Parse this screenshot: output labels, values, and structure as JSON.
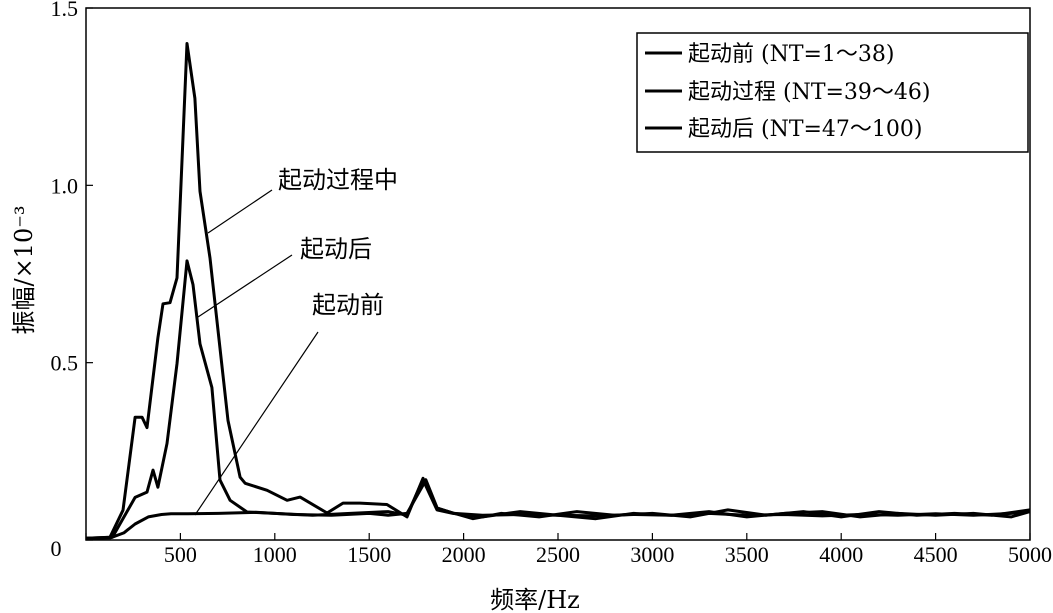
{
  "chart_data": {
    "type": "line",
    "title": "",
    "xlabel": "频率/Hz",
    "ylabel": "振幅/×10⁻³",
    "xlim": [
      0,
      5000
    ],
    "ylim": [
      0,
      1.5
    ],
    "grid": false,
    "x_ticks": [
      "0",
      "500",
      "1000",
      "1500",
      "2000",
      "2500",
      "3000",
      "3500",
      "4000",
      "4500",
      "5000"
    ],
    "y_ticks": [
      "0",
      "0.5",
      "1.0",
      "1.5"
    ],
    "legend_position": "top-right",
    "series": [
      {
        "name": "起动前  (NT=1～38)",
        "x": [
          0,
          130,
          200,
          260,
          330,
          400,
          450,
          540,
          700,
          900,
          1100,
          1300,
          1500,
          1600,
          1700,
          1780,
          1800,
          1860,
          1950,
          2100,
          2300,
          2500,
          2700,
          2900,
          3100,
          3300,
          3500,
          3700,
          3900,
          4100,
          4300,
          4500,
          4700,
          4900,
          5000
        ],
        "y": [
          0.005,
          0.006,
          0.02,
          0.045,
          0.065,
          0.072,
          0.074,
          0.074,
          0.075,
          0.078,
          0.072,
          0.07,
          0.075,
          0.07,
          0.075,
          0.15,
          0.17,
          0.09,
          0.075,
          0.07,
          0.072,
          0.07,
          0.068,
          0.072,
          0.07,
          0.075,
          0.07,
          0.072,
          0.068,
          0.072,
          0.07,
          0.074,
          0.07,
          0.075,
          0.08
        ]
      },
      {
        "name": "起动过程 (NT=39～46)",
        "x": [
          0,
          127,
          196,
          260,
          297,
          323,
          381,
          408,
          445,
          482,
          535,
          577,
          604,
          657,
          752,
          816,
          843,
          959,
          1065,
          1134,
          1277,
          1361,
          1451,
          1594,
          1700,
          1785,
          1859,
          1944,
          2050,
          2200,
          2400,
          2600,
          2800,
          3000,
          3200,
          3400,
          3600,
          3800,
          4000,
          4200,
          4400,
          4600,
          4800,
          5000
        ],
        "y": [
          0.005,
          0.008,
          0.084,
          0.346,
          0.346,
          0.317,
          0.57,
          0.666,
          0.669,
          0.739,
          1.4,
          1.245,
          0.983,
          0.795,
          0.337,
          0.177,
          0.16,
          0.14,
          0.112,
          0.121,
          0.076,
          0.104,
          0.104,
          0.1,
          0.065,
          0.174,
          0.09,
          0.076,
          0.06,
          0.075,
          0.065,
          0.08,
          0.07,
          0.075,
          0.065,
          0.085,
          0.07,
          0.08,
          0.065,
          0.08,
          0.07,
          0.075,
          0.07,
          0.085
        ]
      },
      {
        "name": "起动后  (NT=47～100)",
        "x": [
          0,
          140,
          260,
          323,
          355,
          381,
          429,
          482,
          535,
          567,
          604,
          667,
          710,
          763,
          853,
          1000,
          1200,
          1400,
          1600,
          1700,
          1785,
          1859,
          1944,
          2100,
          2300,
          2500,
          2700,
          2900,
          3100,
          3300,
          3500,
          3700,
          3900,
          4100,
          4300,
          4500,
          4700,
          4900,
          5000
        ],
        "y": [
          0.005,
          0.008,
          0.12,
          0.135,
          0.197,
          0.149,
          0.272,
          0.497,
          0.787,
          0.72,
          0.553,
          0.43,
          0.169,
          0.112,
          0.079,
          0.075,
          0.07,
          0.075,
          0.08,
          0.07,
          0.17,
          0.085,
          0.075,
          0.065,
          0.08,
          0.07,
          0.06,
          0.075,
          0.07,
          0.08,
          0.065,
          0.075,
          0.08,
          0.065,
          0.075,
          0.07,
          0.075,
          0.065,
          0.08
        ]
      }
    ],
    "annotations": [
      {
        "text": "起动过程中",
        "series": 1
      },
      {
        "text": "起动后",
        "series": 2
      },
      {
        "text": "起动前",
        "series": 0
      }
    ]
  }
}
